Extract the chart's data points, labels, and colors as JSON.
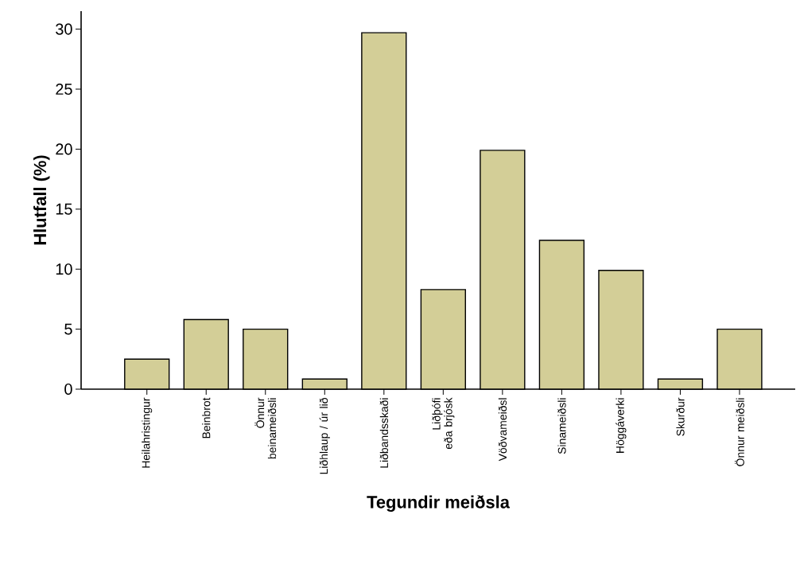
{
  "chart_data": {
    "type": "bar",
    "xlabel": "Tegundir meiðsla",
    "ylabel": "Hlutfall (%)",
    "categories": [
      "Heilahristingur",
      "Beinbrot",
      "Önnur beinameiðsli",
      "Liðhlaup / úr lið",
      "Liðbandsskaði",
      "Liðþófi eða brjósk",
      "Vöðvameiðsl",
      "Sinameiðsli",
      "Höggáverki",
      "Skurður",
      "Önnur meiðsli"
    ],
    "values": [
      2.5,
      5.8,
      5.0,
      0.85,
      29.7,
      8.3,
      19.9,
      12.4,
      9.9,
      0.85,
      5.0
    ],
    "color": "#d3ce97",
    "ylim": [
      0,
      31.5
    ],
    "yticks": [
      0,
      5,
      10,
      15,
      20,
      25,
      30
    ],
    "grid": false
  }
}
